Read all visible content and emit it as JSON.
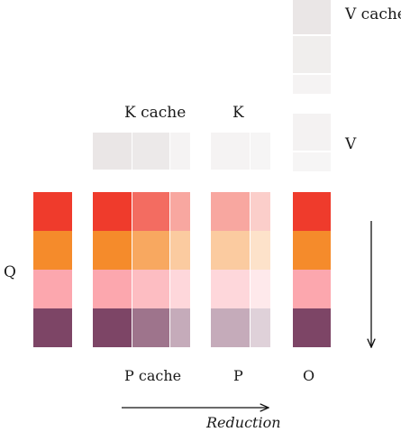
{
  "labels": {
    "v_cache": "V cache",
    "k_cache": "K cache",
    "k": "K",
    "v": "V",
    "q": "Q",
    "p_cache": "P cache",
    "p": "P",
    "o": "O",
    "reduction": "Reduction"
  },
  "colors": {
    "red": "#ef3b2c",
    "orange": "#f58b2b",
    "pink": "#fca7ae",
    "plum": "#7d4566",
    "gray_dark": "#e6e2e1",
    "gray_mid": "#eeeaea",
    "gray_light": "#f4f1f1",
    "arrow": "#111111"
  },
  "rows": [
    "red",
    "orange",
    "pink",
    "plum"
  ],
  "column_tints": {
    "q": [
      1.0
    ],
    "p_cache": [
      1.0,
      0.75,
      0.45
    ],
    "p": [
      0.45,
      0.25
    ],
    "o": [
      1.0
    ]
  },
  "k_cache_tints": [
    0.85,
    0.75,
    0.4
  ],
  "k_tints": [
    0.4,
    0.35
  ],
  "v_cache_tints": [
    0.85,
    0.6,
    0.4
  ],
  "v_tints": [
    0.45,
    0.35
  ]
}
